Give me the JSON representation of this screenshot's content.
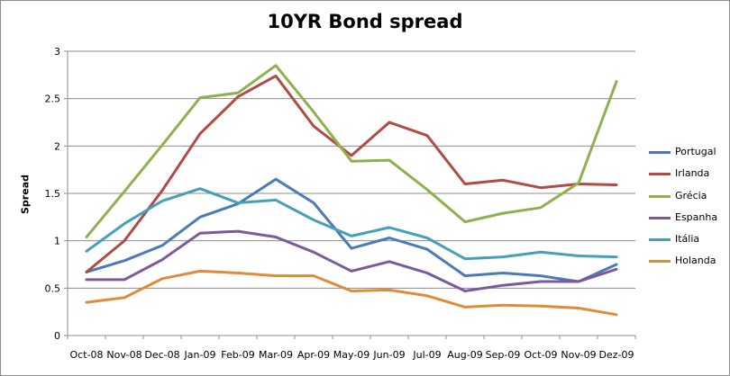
{
  "chart_data": {
    "type": "line",
    "title": "10YR Bond spread",
    "xlabel": "",
    "ylabel": "Spread",
    "ylim": [
      0,
      3
    ],
    "yticks": [
      "0",
      "0.5",
      "1",
      "1.5",
      "2",
      "2.5",
      "3"
    ],
    "grid": "horizontal",
    "legend_position": "right",
    "categories": [
      "Oct-08",
      "Nov-08",
      "Dec-08",
      "Jan-09",
      "Feb-09",
      "Mar-09",
      "Apr-09",
      "May-09",
      "Jun-09",
      "Jul-09",
      "Aug-09",
      "Sep-09",
      "Oct-09",
      "Nov-09",
      "Dez-09"
    ],
    "series": [
      {
        "name": "Portugal",
        "color": "#4a7ab8",
        "values": [
          0.67,
          0.79,
          0.95,
          1.25,
          1.39,
          1.65,
          1.4,
          0.92,
          1.03,
          0.91,
          0.63,
          0.66,
          0.63,
          0.57,
          0.75
        ]
      },
      {
        "name": "Irlanda",
        "color": "#b04b45",
        "values": [
          0.67,
          1.0,
          1.53,
          2.13,
          2.52,
          2.74,
          2.21,
          1.9,
          2.25,
          2.11,
          1.6,
          1.64,
          1.56,
          1.6,
          1.59
        ]
      },
      {
        "name": "Grécia",
        "color": "#8fb04f",
        "values": [
          1.04,
          1.52,
          2.01,
          2.51,
          2.56,
          2.85,
          2.36,
          1.84,
          1.85,
          1.54,
          1.2,
          1.29,
          1.35,
          1.61,
          2.68
        ]
      },
      {
        "name": "Espanha",
        "color": "#7b5a9a",
        "values": [
          0.59,
          0.59,
          0.8,
          1.08,
          1.1,
          1.04,
          0.88,
          0.68,
          0.78,
          0.66,
          0.47,
          0.53,
          0.57,
          0.57,
          0.7
        ]
      },
      {
        "name": "Itália",
        "color": "#45a0b8",
        "values": [
          0.89,
          1.18,
          1.42,
          1.55,
          1.4,
          1.43,
          1.22,
          1.05,
          1.14,
          1.03,
          0.81,
          0.83,
          0.88,
          0.84,
          0.83
        ]
      },
      {
        "name": "Holanda",
        "color": "#e08a3b",
        "values": [
          0.35,
          0.4,
          0.6,
          0.68,
          0.66,
          0.63,
          0.63,
          0.47,
          0.48,
          0.42,
          0.3,
          0.32,
          0.31,
          0.29,
          0.22
        ]
      }
    ]
  }
}
